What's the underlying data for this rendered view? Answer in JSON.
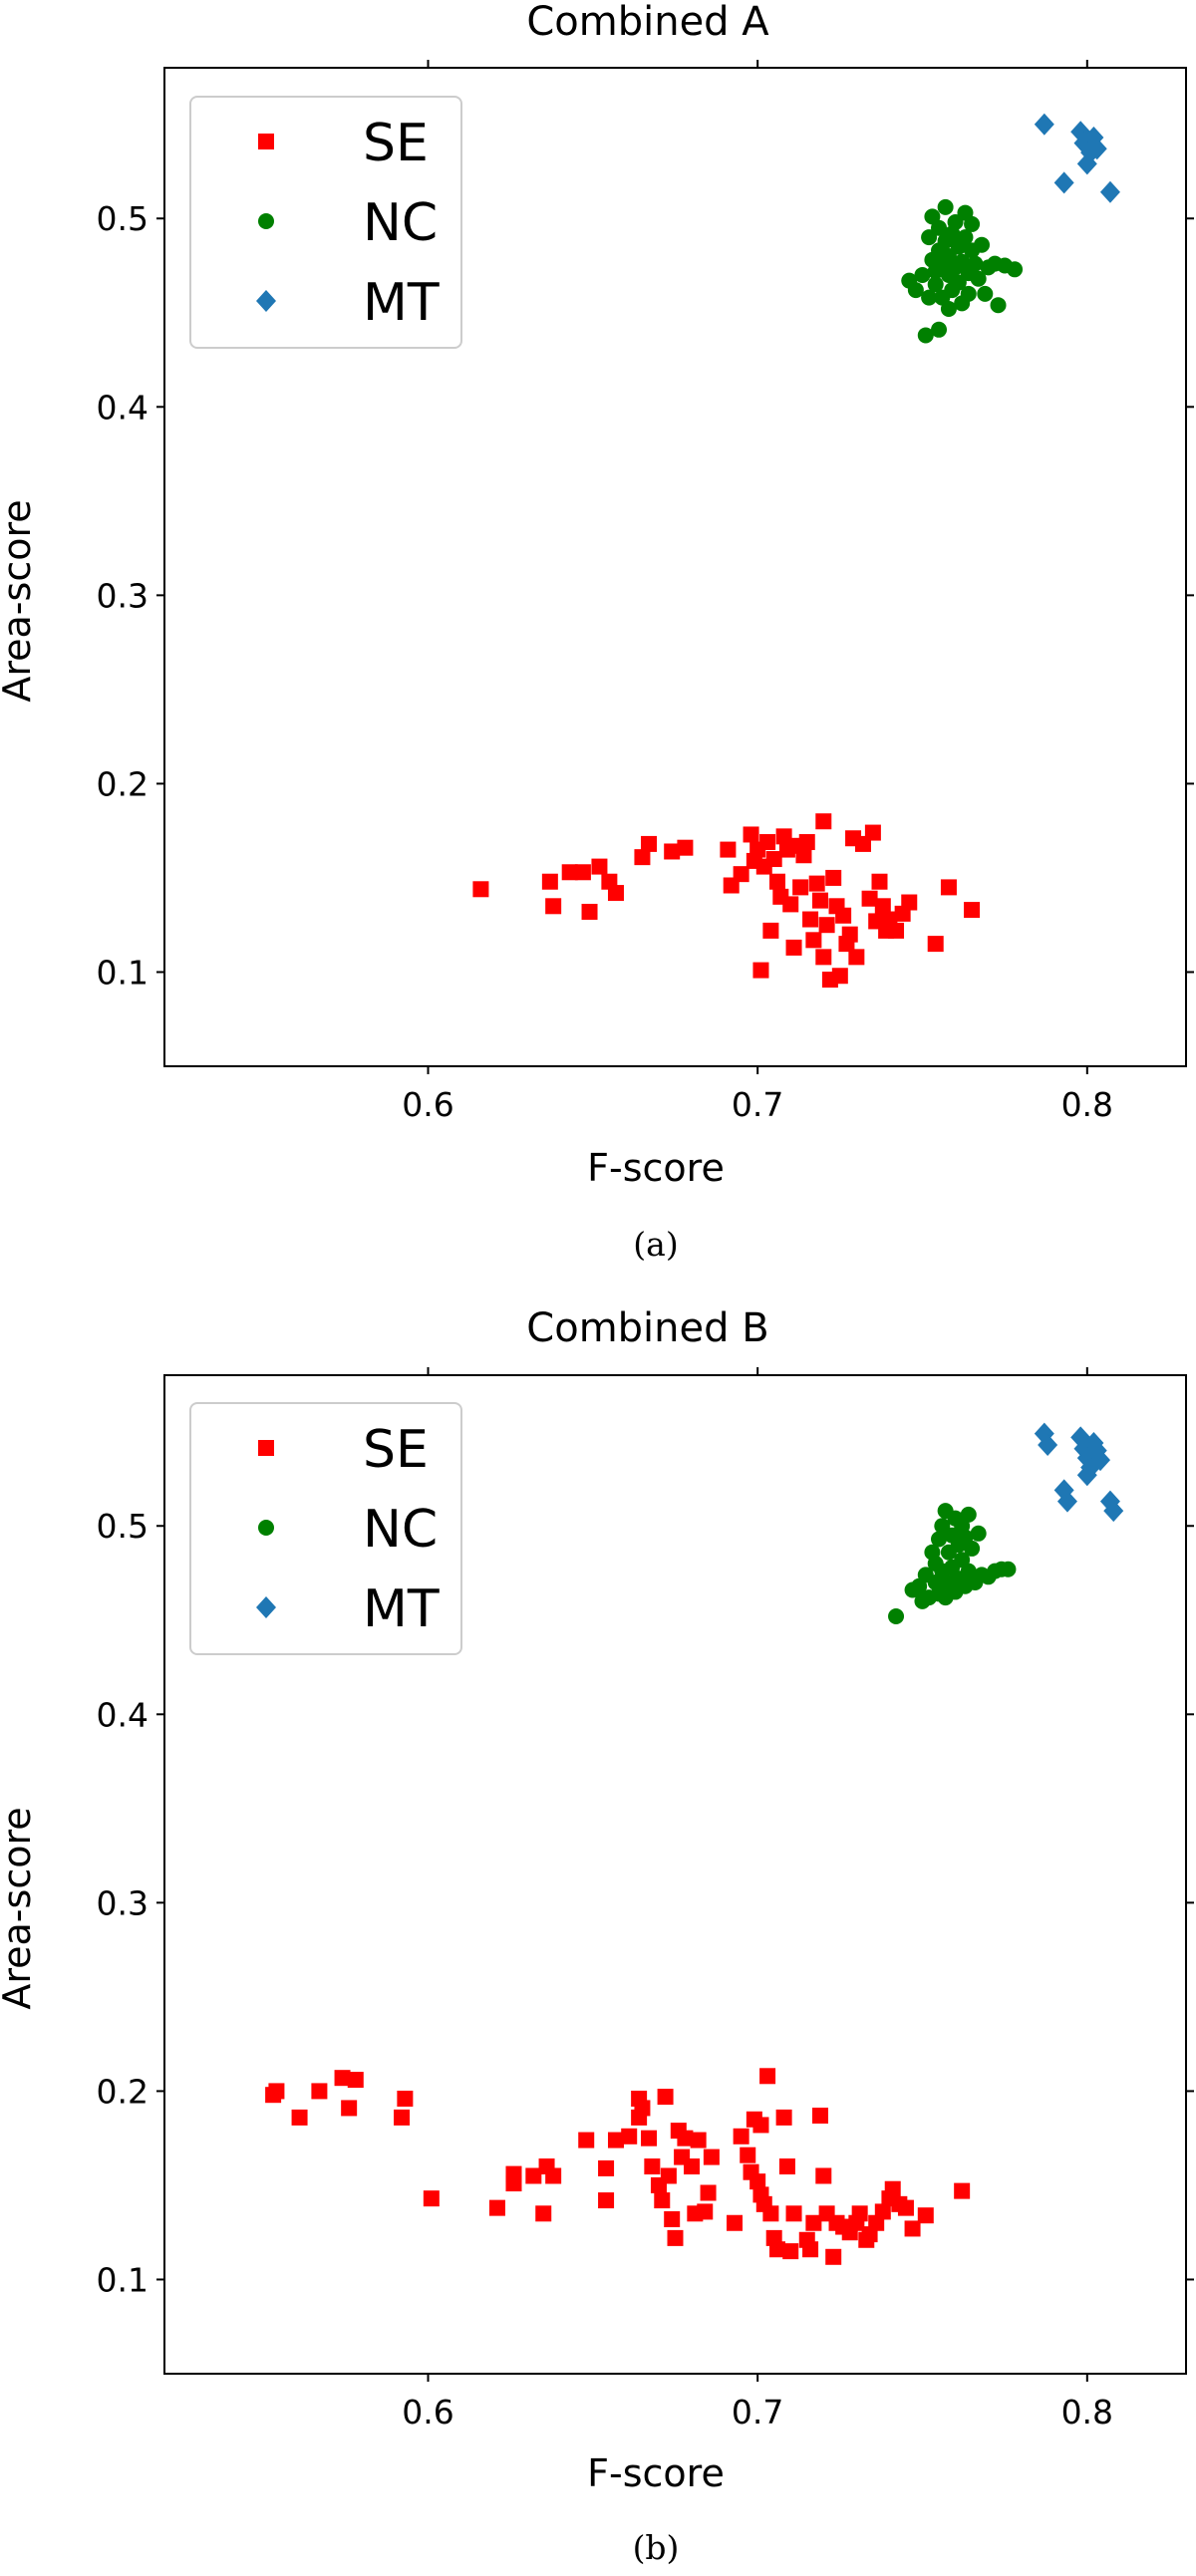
{
  "chart_data": [
    {
      "type": "scatter",
      "title": "Combined A",
      "xlabel": "F-score",
      "ylabel": "Area-score",
      "caption": "(a)",
      "xlim": [
        0.52,
        0.83
      ],
      "ylim": [
        0.05,
        0.58
      ],
      "xticks": [
        0.6,
        0.7,
        0.8
      ],
      "xtick_labels": [
        "0.6",
        "0.7",
        "0.8"
      ],
      "yticks": [
        0.1,
        0.2,
        0.3,
        0.4,
        0.5
      ],
      "ytick_labels": [
        "0.1",
        "0.2",
        "0.3",
        "0.4",
        "0.5"
      ],
      "legend_position": "top-left",
      "series": [
        {
          "name": "SE",
          "marker": "square",
          "color": "#ff0000",
          "points": [
            [
              0.616,
              0.144
            ],
            [
              0.637,
              0.148
            ],
            [
              0.638,
              0.135
            ],
            [
              0.643,
              0.153
            ],
            [
              0.647,
              0.153
            ],
            [
              0.649,
              0.132
            ],
            [
              0.652,
              0.156
            ],
            [
              0.655,
              0.148
            ],
            [
              0.657,
              0.142
            ],
            [
              0.665,
              0.161
            ],
            [
              0.667,
              0.168
            ],
            [
              0.674,
              0.164
            ],
            [
              0.678,
              0.166
            ],
            [
              0.691,
              0.165
            ],
            [
              0.692,
              0.146
            ],
            [
              0.695,
              0.152
            ],
            [
              0.698,
              0.173
            ],
            [
              0.699,
              0.159
            ],
            [
              0.7,
              0.165
            ],
            [
              0.701,
              0.101
            ],
            [
              0.702,
              0.156
            ],
            [
              0.703,
              0.169
            ],
            [
              0.704,
              0.122
            ],
            [
              0.705,
              0.16
            ],
            [
              0.706,
              0.148
            ],
            [
              0.707,
              0.14
            ],
            [
              0.708,
              0.172
            ],
            [
              0.709,
              0.165
            ],
            [
              0.71,
              0.136
            ],
            [
              0.711,
              0.113
            ],
            [
              0.712,
              0.167
            ],
            [
              0.713,
              0.145
            ],
            [
              0.714,
              0.162
            ],
            [
              0.715,
              0.169
            ],
            [
              0.716,
              0.128
            ],
            [
              0.717,
              0.117
            ],
            [
              0.718,
              0.147
            ],
            [
              0.719,
              0.138
            ],
            [
              0.72,
              0.18
            ],
            [
              0.72,
              0.108
            ],
            [
              0.721,
              0.125
            ],
            [
              0.722,
              0.096
            ],
            [
              0.723,
              0.15
            ],
            [
              0.724,
              0.135
            ],
            [
              0.725,
              0.098
            ],
            [
              0.726,
              0.13
            ],
            [
              0.727,
              0.115
            ],
            [
              0.728,
              0.12
            ],
            [
              0.729,
              0.171
            ],
            [
              0.73,
              0.108
            ],
            [
              0.732,
              0.168
            ],
            [
              0.734,
              0.139
            ],
            [
              0.735,
              0.174
            ],
            [
              0.736,
              0.127
            ],
            [
              0.737,
              0.148
            ],
            [
              0.738,
              0.135
            ],
            [
              0.739,
              0.122
            ],
            [
              0.74,
              0.128
            ],
            [
              0.742,
              0.122
            ],
            [
              0.744,
              0.131
            ],
            [
              0.746,
              0.137
            ],
            [
              0.754,
              0.115
            ],
            [
              0.758,
              0.145
            ],
            [
              0.765,
              0.133
            ]
          ]
        },
        {
          "name": "NC",
          "marker": "circle",
          "color": "#008000",
          "points": [
            [
              0.746,
              0.467
            ],
            [
              0.748,
              0.462
            ],
            [
              0.75,
              0.47
            ],
            [
              0.751,
              0.438
            ],
            [
              0.752,
              0.49
            ],
            [
              0.752,
              0.458
            ],
            [
              0.753,
              0.478
            ],
            [
              0.753,
              0.501
            ],
            [
              0.754,
              0.465
            ],
            [
              0.754,
              0.472
            ],
            [
              0.755,
              0.483
            ],
            [
              0.755,
              0.495
            ],
            [
              0.755,
              0.441
            ],
            [
              0.756,
              0.458
            ],
            [
              0.756,
              0.476
            ],
            [
              0.757,
              0.488
            ],
            [
              0.757,
              0.506
            ],
            [
              0.758,
              0.452
            ],
            [
              0.758,
              0.47
            ],
            [
              0.758,
              0.48
            ],
            [
              0.759,
              0.462
            ],
            [
              0.759,
              0.492
            ],
            [
              0.76,
              0.474
            ],
            [
              0.76,
              0.498
            ],
            [
              0.761,
              0.466
            ],
            [
              0.761,
              0.485
            ],
            [
              0.762,
              0.455
            ],
            [
              0.762,
              0.477
            ],
            [
              0.763,
              0.503
            ],
            [
              0.763,
              0.49
            ],
            [
              0.764,
              0.471
            ],
            [
              0.764,
              0.46
            ],
            [
              0.765,
              0.483
            ],
            [
              0.765,
              0.497
            ],
            [
              0.766,
              0.476
            ],
            [
              0.767,
              0.468
            ],
            [
              0.768,
              0.486
            ],
            [
              0.769,
              0.46
            ],
            [
              0.77,
              0.474
            ],
            [
              0.772,
              0.476
            ],
            [
              0.773,
              0.454
            ],
            [
              0.775,
              0.475
            ],
            [
              0.778,
              0.473
            ]
          ]
        },
        {
          "name": "MT",
          "marker": "diamond",
          "color": "#1f77b4",
          "points": [
            [
              0.787,
              0.55
            ],
            [
              0.793,
              0.519
            ],
            [
              0.798,
              0.546
            ],
            [
              0.799,
              0.54
            ],
            [
              0.8,
              0.529
            ],
            [
              0.801,
              0.535
            ],
            [
              0.802,
              0.543
            ],
            [
              0.803,
              0.537
            ],
            [
              0.807,
              0.514
            ]
          ]
        }
      ]
    },
    {
      "type": "scatter",
      "title": "Combined B",
      "xlabel": "F-score",
      "ylabel": "Area-score",
      "caption": "(b)",
      "xlim": [
        0.52,
        0.83
      ],
      "ylim": [
        0.05,
        0.58
      ],
      "xticks": [
        0.6,
        0.7,
        0.8
      ],
      "xtick_labels": [
        "0.6",
        "0.7",
        "0.8"
      ],
      "yticks": [
        0.1,
        0.2,
        0.3,
        0.4,
        0.5
      ],
      "ytick_labels": [
        "0.1",
        "0.2",
        "0.3",
        "0.4",
        "0.5"
      ],
      "legend_position": "top-left",
      "series": [
        {
          "name": "SE",
          "marker": "square",
          "color": "#ff0000",
          "points": [
            [
              0.553,
              0.198
            ],
            [
              0.554,
              0.2
            ],
            [
              0.561,
              0.186
            ],
            [
              0.567,
              0.2
            ],
            [
              0.574,
              0.207
            ],
            [
              0.576,
              0.191
            ],
            [
              0.578,
              0.206
            ],
            [
              0.592,
              0.186
            ],
            [
              0.593,
              0.196
            ],
            [
              0.601,
              0.143
            ],
            [
              0.621,
              0.138
            ],
            [
              0.626,
              0.156
            ],
            [
              0.626,
              0.151
            ],
            [
              0.632,
              0.155
            ],
            [
              0.635,
              0.135
            ],
            [
              0.636,
              0.16
            ],
            [
              0.638,
              0.155
            ],
            [
              0.648,
              0.174
            ],
            [
              0.654,
              0.142
            ],
            [
              0.654,
              0.159
            ],
            [
              0.657,
              0.174
            ],
            [
              0.661,
              0.176
            ],
            [
              0.664,
              0.196
            ],
            [
              0.664,
              0.186
            ],
            [
              0.665,
              0.191
            ],
            [
              0.667,
              0.175
            ],
            [
              0.668,
              0.16
            ],
            [
              0.67,
              0.15
            ],
            [
              0.671,
              0.142
            ],
            [
              0.672,
              0.197
            ],
            [
              0.673,
              0.155
            ],
            [
              0.674,
              0.132
            ],
            [
              0.675,
              0.122
            ],
            [
              0.676,
              0.179
            ],
            [
              0.677,
              0.165
            ],
            [
              0.678,
              0.175
            ],
            [
              0.68,
              0.16
            ],
            [
              0.681,
              0.135
            ],
            [
              0.682,
              0.174
            ],
            [
              0.684,
              0.136
            ],
            [
              0.685,
              0.146
            ],
            [
              0.686,
              0.165
            ],
            [
              0.693,
              0.13
            ],
            [
              0.695,
              0.176
            ],
            [
              0.697,
              0.166
            ],
            [
              0.698,
              0.157
            ],
            [
              0.699,
              0.185
            ],
            [
              0.7,
              0.152
            ],
            [
              0.701,
              0.145
            ],
            [
              0.701,
              0.182
            ],
            [
              0.702,
              0.14
            ],
            [
              0.703,
              0.208
            ],
            [
              0.704,
              0.135
            ],
            [
              0.705,
              0.122
            ],
            [
              0.706,
              0.116
            ],
            [
              0.708,
              0.186
            ],
            [
              0.709,
              0.16
            ],
            [
              0.71,
              0.115
            ],
            [
              0.711,
              0.135
            ],
            [
              0.715,
              0.121
            ],
            [
              0.716,
              0.116
            ],
            [
              0.717,
              0.13
            ],
            [
              0.719,
              0.187
            ],
            [
              0.72,
              0.155
            ],
            [
              0.721,
              0.135
            ],
            [
              0.723,
              0.112
            ],
            [
              0.724,
              0.13
            ],
            [
              0.726,
              0.128
            ],
            [
              0.728,
              0.125
            ],
            [
              0.73,
              0.13
            ],
            [
              0.731,
              0.135
            ],
            [
              0.733,
              0.121
            ],
            [
              0.734,
              0.124
            ],
            [
              0.736,
              0.13
            ],
            [
              0.738,
              0.136
            ],
            [
              0.74,
              0.143
            ],
            [
              0.741,
              0.148
            ],
            [
              0.743,
              0.14
            ],
            [
              0.745,
              0.138
            ],
            [
              0.747,
              0.127
            ],
            [
              0.751,
              0.134
            ],
            [
              0.762,
              0.147
            ]
          ]
        },
        {
          "name": "NC",
          "marker": "circle",
          "color": "#008000",
          "points": [
            [
              0.742,
              0.452
            ],
            [
              0.747,
              0.466
            ],
            [
              0.749,
              0.468
            ],
            [
              0.75,
              0.46
            ],
            [
              0.751,
              0.474
            ],
            [
              0.752,
              0.462
            ],
            [
              0.753,
              0.486
            ],
            [
              0.754,
              0.47
            ],
            [
              0.754,
              0.48
            ],
            [
              0.755,
              0.493
            ],
            [
              0.755,
              0.464
            ],
            [
              0.756,
              0.5
            ],
            [
              0.756,
              0.476
            ],
            [
              0.757,
              0.508
            ],
            [
              0.757,
              0.462
            ],
            [
              0.758,
              0.486
            ],
            [
              0.758,
              0.47
            ],
            [
              0.759,
              0.495
            ],
            [
              0.759,
              0.478
            ],
            [
              0.76,
              0.504
            ],
            [
              0.76,
              0.465
            ],
            [
              0.761,
              0.49
            ],
            [
              0.761,
              0.472
            ],
            [
              0.762,
              0.5
            ],
            [
              0.762,
              0.482
            ],
            [
              0.763,
              0.468
            ],
            [
              0.763,
              0.494
            ],
            [
              0.764,
              0.506
            ],
            [
              0.764,
              0.476
            ],
            [
              0.765,
              0.488
            ],
            [
              0.766,
              0.47
            ],
            [
              0.767,
              0.496
            ],
            [
              0.768,
              0.474
            ],
            [
              0.77,
              0.473
            ],
            [
              0.772,
              0.476
            ],
            [
              0.774,
              0.477
            ],
            [
              0.776,
              0.477
            ]
          ]
        },
        {
          "name": "MT",
          "marker": "diamond",
          "color": "#1f77b4",
          "points": [
            [
              0.787,
              0.549
            ],
            [
              0.788,
              0.543
            ],
            [
              0.793,
              0.519
            ],
            [
              0.794,
              0.513
            ],
            [
              0.798,
              0.547
            ],
            [
              0.799,
              0.541
            ],
            [
              0.8,
              0.536
            ],
            [
              0.8,
              0.527
            ],
            [
              0.801,
              0.531
            ],
            [
              0.802,
              0.544
            ],
            [
              0.803,
              0.54
            ],
            [
              0.804,
              0.535
            ],
            [
              0.807,
              0.513
            ],
            [
              0.808,
              0.508
            ]
          ]
        }
      ]
    }
  ]
}
